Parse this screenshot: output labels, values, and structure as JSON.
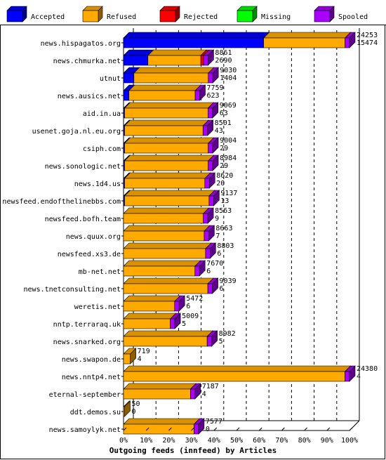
{
  "chart_data": {
    "type": "bar",
    "orientation": "horizontal",
    "stacked": true,
    "three_d": true,
    "title": "Outgoing feeds (innfeed) by Articles",
    "legend": [
      {
        "name": "Accepted",
        "color": "#0000ff"
      },
      {
        "name": "Refused",
        "color": "#ffaa00"
      },
      {
        "name": "Rejected",
        "color": "#ff0000"
      },
      {
        "name": "Missing",
        "color": "#00ff00"
      },
      {
        "name": "Spooled",
        "color": "#aa00ff"
      }
    ],
    "legend_placement": "top",
    "x_ticks": [
      "0%",
      "10%",
      "20%",
      "30%",
      "40%",
      "50%",
      "60%",
      "70%",
      "80%",
      "90%",
      "100%"
    ],
    "grid": "dashed-vertical",
    "rows": [
      {
        "name": "news.hispagatos.org",
        "total": "24253",
        "second": "15474",
        "accepted": 0.62,
        "refused": 0.36,
        "rejected": 0,
        "spooled": 0.02
      },
      {
        "name": "news.chmurka.net",
        "total": "8861",
        "second": "2690",
        "accepted": 0.108,
        "refused": 0.234,
        "rejected": 0.012,
        "spooled": 0.02
      },
      {
        "name": "utnut",
        "total": "9030",
        "second": "1404",
        "accepted": 0.046,
        "refused": 0.329,
        "rejected": 0,
        "spooled": 0.02
      },
      {
        "name": "news.ausics.net",
        "total": "7759",
        "second": "623",
        "accepted": 0.024,
        "refused": 0.293,
        "rejected": 0,
        "spooled": 0.02
      },
      {
        "name": "aid.in.ua",
        "total": "9069",
        "second": "63",
        "accepted": 0.003,
        "refused": 0.369,
        "rejected": 0,
        "spooled": 0.02
      },
      {
        "name": "usenet.goja.nl.eu.org",
        "total": "8501",
        "second": "43",
        "accepted": 0.002,
        "refused": 0.347,
        "rejected": 0,
        "spooled": 0.02
      },
      {
        "name": "csiph.com",
        "total": "9004",
        "second": "29",
        "accepted": 0.001,
        "refused": 0.37,
        "rejected": 0,
        "spooled": 0.02
      },
      {
        "name": "news.sonologic.net",
        "total": "8984",
        "second": "29",
        "accepted": 0.001,
        "refused": 0.37,
        "rejected": 0,
        "spooled": 0.02
      },
      {
        "name": "news.1d4.us",
        "total": "8620",
        "second": "20",
        "accepted": 0.001,
        "refused": 0.355,
        "rejected": 0,
        "spooled": 0.02
      },
      {
        "name": "newsfeed.endofthelinebbs.com",
        "total": "9137",
        "second": "13",
        "accepted": 0.001,
        "refused": 0.374,
        "rejected": 0,
        "spooled": 0.02
      },
      {
        "name": "newsfeed.bofh.team",
        "total": "8563",
        "second": "9",
        "accepted": 0,
        "refused": 0.353,
        "rejected": 0,
        "spooled": 0.02
      },
      {
        "name": "news.quux.org",
        "total": "8663",
        "second": "7",
        "accepted": 0,
        "refused": 0.357,
        "rejected": 0,
        "spooled": 0.02
      },
      {
        "name": "newsfeed.xs3.de",
        "total": "8803",
        "second": "6",
        "accepted": 0,
        "refused": 0.363,
        "rejected": 0,
        "spooled": 0.02
      },
      {
        "name": "mb-net.net",
        "total": "7670",
        "second": "6",
        "accepted": 0,
        "refused": 0.316,
        "rejected": 0,
        "spooled": 0.02
      },
      {
        "name": "news.tnetconsulting.net",
        "total": "9039",
        "second": "6",
        "accepted": 0,
        "refused": 0.373,
        "rejected": 0,
        "spooled": 0.02
      },
      {
        "name": "weretis.net",
        "total": "5472",
        "second": "6",
        "accepted": 0,
        "refused": 0.226,
        "rejected": 0,
        "spooled": 0.02
      },
      {
        "name": "nntp.terraraq.uk",
        "total": "5009",
        "second": "5",
        "accepted": 0,
        "refused": 0.207,
        "rejected": 0,
        "spooled": 0.02
      },
      {
        "name": "news.snarked.org",
        "total": "8982",
        "second": "5",
        "accepted": 0,
        "refused": 0.37,
        "rejected": 0,
        "spooled": 0.02
      },
      {
        "name": "news.swapon.de",
        "total": "719",
        "second": "4",
        "accepted": 0,
        "refused": 0.03,
        "rejected": 0,
        "spooled": 0
      },
      {
        "name": "news.nntp4.net",
        "total": "24380",
        "second": "4",
        "accepted": 0,
        "refused": 0.98,
        "rejected": 0,
        "spooled": 0.02
      },
      {
        "name": "eternal-september",
        "total": "7187",
        "second": "4",
        "accepted": 0,
        "refused": 0.296,
        "rejected": 0,
        "spooled": 0.02
      },
      {
        "name": "ddt.demos.su",
        "total": "50",
        "second": "0",
        "accepted": 0,
        "refused": 0.002,
        "rejected": 0,
        "spooled": 0
      },
      {
        "name": "news.samoylyk.net",
        "total": "7577",
        "second": "0",
        "accepted": 0,
        "refused": 0.312,
        "rejected": 0,
        "spooled": 0.02
      }
    ]
  }
}
